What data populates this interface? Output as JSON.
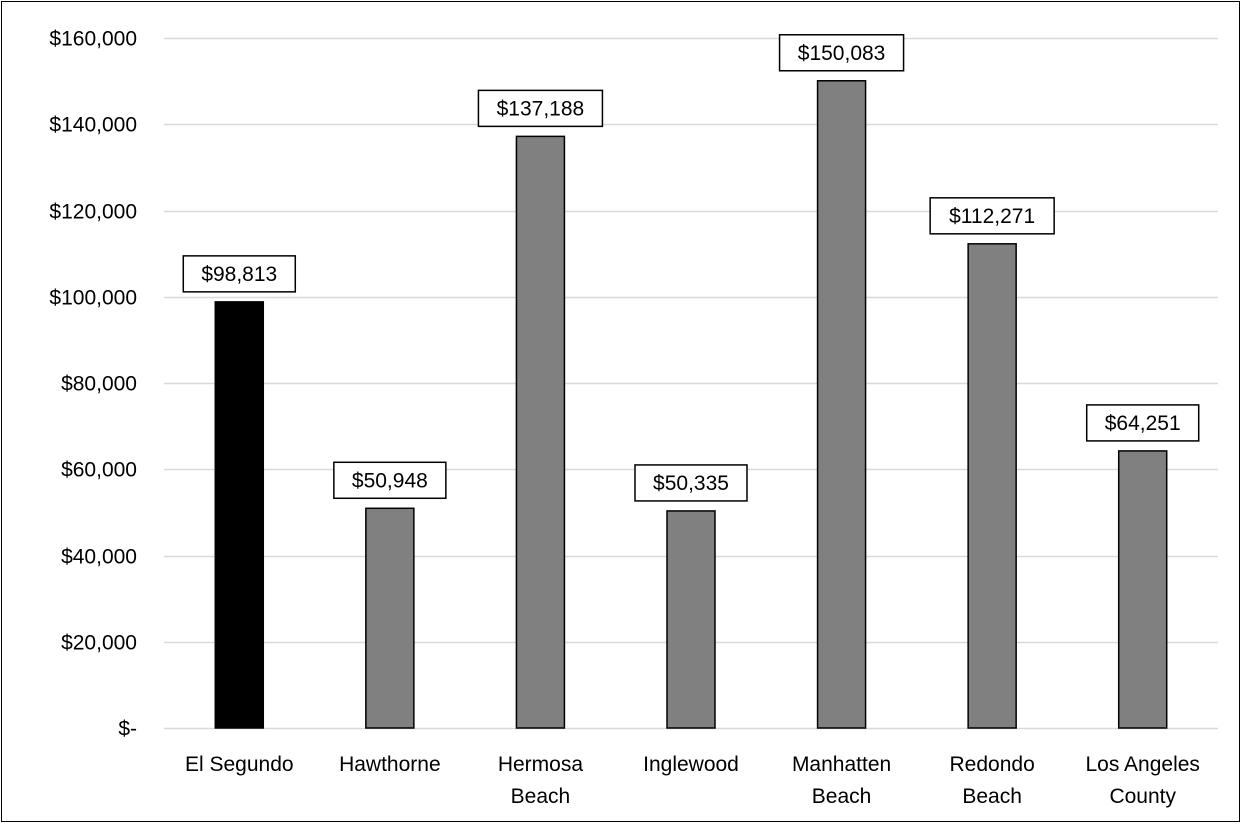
{
  "chart_data": {
    "type": "bar",
    "title": "",
    "xlabel": "",
    "ylabel": "",
    "categories": [
      "El Segundo",
      "Hawthorne",
      "Hermosa Beach",
      "Inglewood",
      "Manhatten Beach",
      "Redondo Beach",
      "Los Angeles County"
    ],
    "category_lines": [
      [
        "El Segundo"
      ],
      [
        "Hawthorne"
      ],
      [
        "Hermosa",
        "Beach"
      ],
      [
        "Inglewood"
      ],
      [
        "Manhatten",
        "Beach"
      ],
      [
        "Redondo",
        "Beach"
      ],
      [
        "Los Angeles",
        "County"
      ]
    ],
    "values": [
      98813,
      50948,
      137188,
      50335,
      150083,
      112271,
      64251
    ],
    "data_labels": [
      "$98,813",
      "$50,948",
      "$137,188",
      "$50,335",
      "$150,083",
      "$112,271",
      "$64,251"
    ],
    "ylim": [
      0,
      160000
    ],
    "yticks": [
      0,
      20000,
      40000,
      60000,
      80000,
      100000,
      120000,
      140000,
      160000
    ],
    "ytick_labels": [
      "$-",
      "$20,000",
      "$40,000",
      "$60,000",
      "$80,000",
      "$100,000",
      "$120,000",
      "$140,000",
      "$160,000"
    ],
    "grid": true,
    "legend": "none",
    "colors": {
      "highlight": "#000000",
      "bar": "#808080",
      "grid": "#d9d9d9",
      "label_border": "#000000"
    },
    "highlight_index": 0
  }
}
